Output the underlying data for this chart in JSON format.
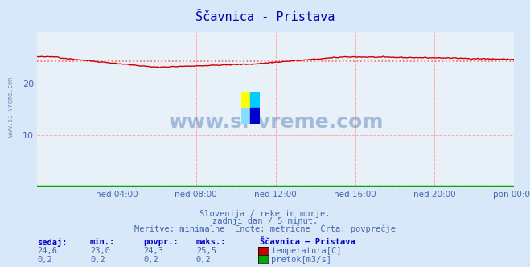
{
  "title": "Ščavnica - Pristava",
  "bg_color": "#d8e8f8",
  "plot_bg_color": "#e8f0f8",
  "title_color": "#0000aa",
  "grid_color": "#ffaaaa",
  "text_color": "#4466aa",
  "x_tick_labels": [
    "ned 04:00",
    "ned 08:00",
    "ned 12:00",
    "ned 16:00",
    "ned 20:00",
    "pon 00:00"
  ],
  "x_tick_positions": [
    0.167,
    0.333,
    0.5,
    0.667,
    0.833,
    1.0
  ],
  "ylim": [
    0,
    30
  ],
  "yticks": [
    10,
    20
  ],
  "temp_avg": 24.3,
  "temp_min": 23.0,
  "temp_max": 25.5,
  "temp_current": 24.6,
  "flow_current": 0.2,
  "flow_min": 0.2,
  "flow_avg": 0.2,
  "flow_max": 0.2,
  "line_color_temp": "#cc0000",
  "line_color_flow": "#00aa00",
  "avg_line_color": "#ff6666",
  "subtitle1": "Slovenija / reke in morje.",
  "subtitle2": "zadnji dan / 5 minut.",
  "subtitle3": "Meritve: minimalne  Enote: metrične  Črta: povprečje",
  "legend_title": "Ščavnica – Pristava",
  "label_sedaj": "sedaj:",
  "label_min": "min.:",
  "label_povpr": "povpr.:",
  "label_maks": "maks.:",
  "label_temp": "temperatura[C]",
  "label_flow": "pretok[m3/s]",
  "watermark": "www.si-vreme.com",
  "watermark_color": "#3366aa",
  "n_points": 289
}
